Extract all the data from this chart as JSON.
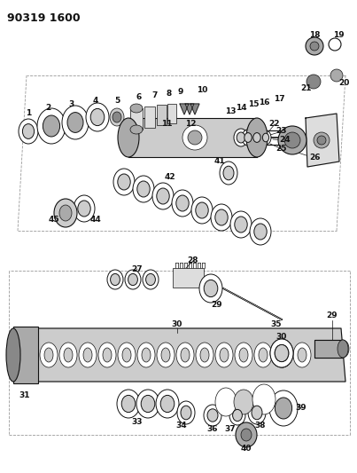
{
  "title": "90319 1600",
  "bg_color": "#ffffff",
  "fig_width": 4.03,
  "fig_height": 5.33,
  "dpi": 100,
  "line_color": "#111111",
  "gray_light": "#cccccc",
  "gray_med": "#aaaaaa",
  "gray_dark": "#888888",
  "gray_fill": "#dddddd",
  "dashed_color": "#999999"
}
